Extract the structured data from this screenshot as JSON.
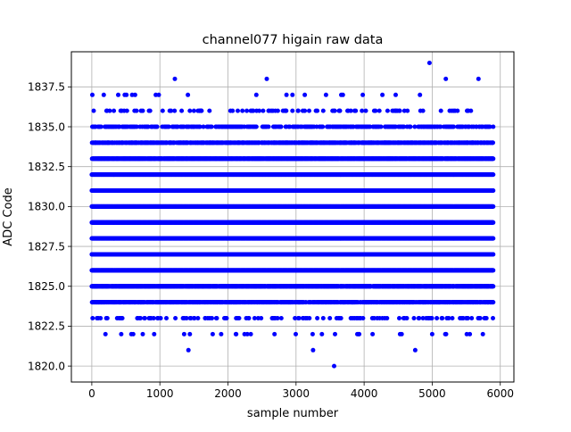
{
  "chart_data": {
    "type": "scatter",
    "title": "channel077 higain raw data",
    "xlabel": "sample number",
    "ylabel": "ADC Code",
    "xlim": [
      -300,
      6200
    ],
    "ylim": [
      1819.0,
      1839.7
    ],
    "xticks": [
      0,
      1000,
      2000,
      3000,
      4000,
      5000,
      6000
    ],
    "xtick_labels": [
      "0",
      "1000",
      "2000",
      "3000",
      "4000",
      "5000",
      "6000"
    ],
    "yticks": [
      1820.0,
      1822.5,
      1825.0,
      1827.5,
      1830.0,
      1832.5,
      1835.0,
      1837.5
    ],
    "ytick_labels": [
      "1820.0",
      "1822.5",
      "1825.0",
      "1827.5",
      "1830.0",
      "1832.5",
      "1835.0",
      "1837.5"
    ],
    "grid": true,
    "marker_color": "#0000ff",
    "sample_count": 5900,
    "levels": [
      {
        "adc": 1820,
        "fraction": 0.0002,
        "x": [
          3560
        ]
      },
      {
        "adc": 1821,
        "fraction": 0.0005,
        "x": [
          1420,
          3250,
          4750
        ]
      },
      {
        "adc": 1822,
        "fraction": 0.02
      },
      {
        "adc": 1823,
        "fraction": 0.08
      },
      {
        "adc": 1824,
        "fraction": 0.55
      },
      {
        "adc": 1825,
        "fraction": 0.8
      },
      {
        "adc": 1826,
        "fraction": 1.0
      },
      {
        "adc": 1827,
        "fraction": 1.0
      },
      {
        "adc": 1828,
        "fraction": 1.0
      },
      {
        "adc": 1829,
        "fraction": 1.0
      },
      {
        "adc": 1830,
        "fraction": 1.0
      },
      {
        "adc": 1831,
        "fraction": 1.0
      },
      {
        "adc": 1832,
        "fraction": 1.0
      },
      {
        "adc": 1833,
        "fraction": 0.85
      },
      {
        "adc": 1834,
        "fraction": 0.55
      },
      {
        "adc": 1835,
        "fraction": 0.25
      },
      {
        "adc": 1836,
        "fraction": 0.06
      },
      {
        "adc": 1837,
        "fraction": 0.012
      },
      {
        "adc": 1838,
        "fraction": 0.0012,
        "x": [
          1220,
          2570,
          5200,
          5680
        ]
      },
      {
        "adc": 1839,
        "fraction": 0.0002,
        "x": [
          4960
        ]
      }
    ]
  }
}
